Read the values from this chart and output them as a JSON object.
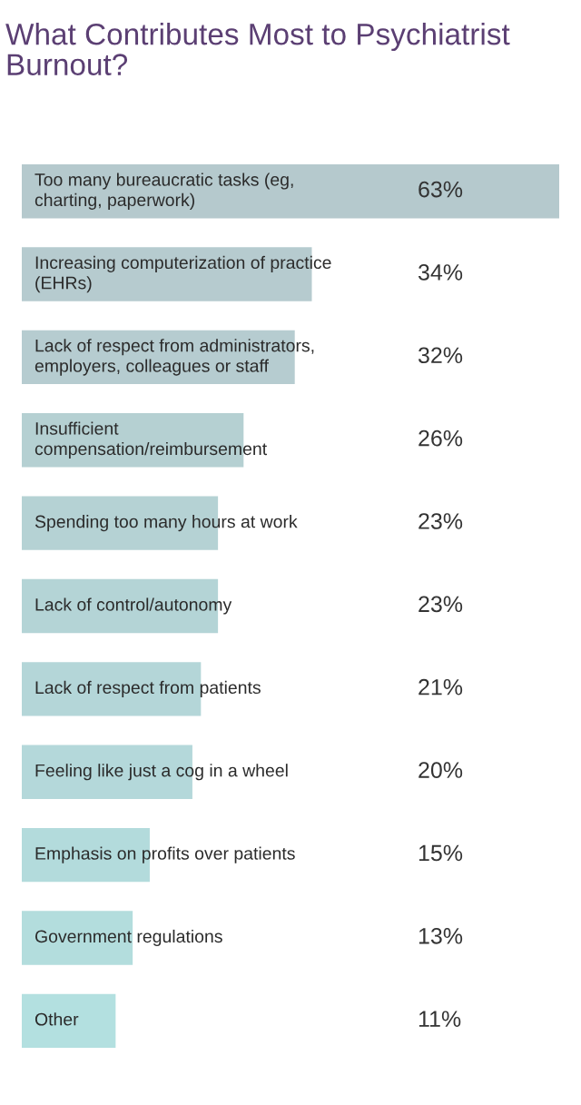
{
  "chart_data": {
    "type": "bar",
    "orientation": "horizontal",
    "title": "What Contributes Most to Psychiatrist Burnout?",
    "categories": [
      "Too many bureaucratic tasks (eg,\ncharting, paperwork)",
      "Increasing computerization of practice\n(EHRs)",
      "Lack of respect from administrators,\nemployers, colleagues or staff",
      "Insufficient\ncompensation/reimbursement",
      "Spending too many hours at work",
      "Lack of control/autonomy",
      "Lack of respect from patients",
      "Feeling like just a cog in a wheel",
      "Emphasis on profits over patients",
      "Government regulations",
      "Other"
    ],
    "values": [
      63,
      34,
      32,
      26,
      23,
      23,
      21,
      20,
      15,
      13,
      11
    ],
    "value_labels": [
      "63%",
      "34%",
      "32%",
      "26%",
      "23%",
      "23%",
      "21%",
      "20%",
      "15%",
      "13%",
      "11%"
    ],
    "colors": [
      "#b5c9cd",
      "#b6cbcf",
      "#b6ccd0",
      "#b5d0d2",
      "#b5d2d4",
      "#b4d4d6",
      "#b4d6d8",
      "#b4d8da",
      "#b3dbdc",
      "#b3dddd",
      "#b3e0e0"
    ],
    "legend": false
  }
}
